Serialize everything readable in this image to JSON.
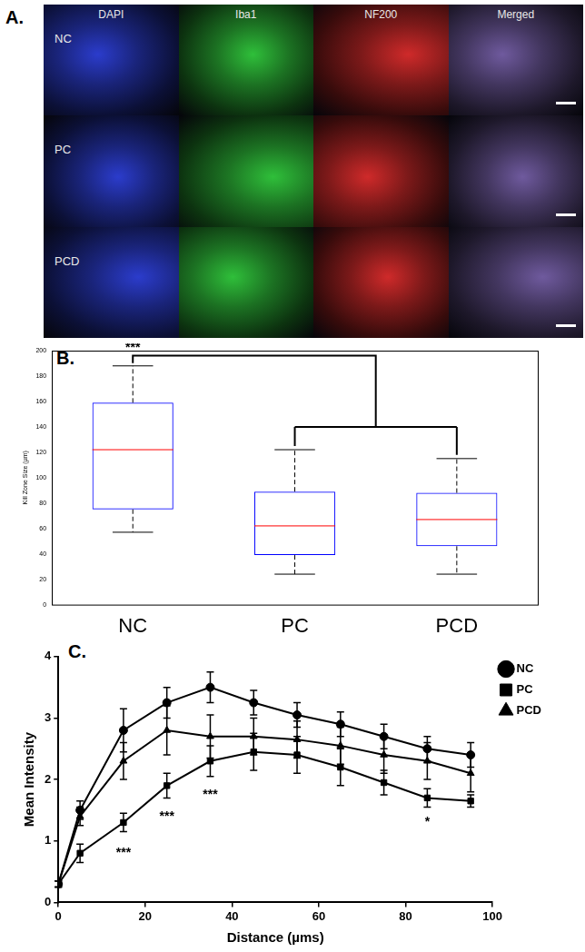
{
  "chart_data": [
    {
      "type": "image_grid",
      "title": "A.",
      "columns": [
        "DAPI",
        "Iba1",
        "NF200",
        "Merged"
      ],
      "rows": [
        "NC",
        "PC",
        "PCD"
      ],
      "colors": [
        "#2b3ccc",
        "#2fbf3a",
        "#cf2a2a",
        "#6f5a9e"
      ]
    },
    {
      "type": "box",
      "title": "B.",
      "y_label": "Kill Zone Size (µm)",
      "categories": [
        "NC",
        "PC",
        "PCD"
      ],
      "min": [
        57,
        24,
        24
      ],
      "q1": [
        75,
        39,
        46
      ],
      "median": [
        122,
        62,
        67
      ],
      "q3": [
        159,
        89,
        88
      ],
      "max": [
        188,
        122,
        115
      ],
      "color": "#0000ff",
      "ylim": [
        0,
        200
      ],
      "yticks": [
        0,
        20,
        40,
        60,
        80,
        100,
        120,
        140,
        160,
        180,
        200
      ],
      "grid": false,
      "annotations": [
        {
          "text": "***",
          "from": "NC",
          "to": [
            "PC",
            "PCD"
          ],
          "y": 196,
          "y2": 140
        }
      ]
    },
    {
      "type": "line",
      "title": "C.",
      "x_label": "Distance (µms)",
      "y_label": "Mean Intensity",
      "x": [
        0,
        5,
        15,
        25,
        35,
        45,
        55,
        65,
        75,
        85,
        95
      ],
      "series": [
        {
          "name": "NC",
          "color": "#000000",
          "marker": "circle",
          "values": [
            0.3,
            1.5,
            2.8,
            3.25,
            3.5,
            3.25,
            3.05,
            2.9,
            2.7,
            2.5,
            2.4
          ],
          "errors": [
            0.05,
            0.15,
            0.35,
            0.25,
            0.25,
            0.2,
            0.2,
            0.2,
            0.2,
            0.2,
            0.2
          ]
        },
        {
          "name": "PC",
          "color": "#000000",
          "marker": "square",
          "values": [
            0.3,
            0.8,
            1.3,
            1.9,
            2.3,
            2.45,
            2.4,
            2.2,
            1.95,
            1.7,
            1.65
          ],
          "errors": [
            0.05,
            0.15,
            0.15,
            0.2,
            0.25,
            0.3,
            0.3,
            0.3,
            0.2,
            0.15,
            0.1
          ]
        },
        {
          "name": "PCD",
          "color": "#000000",
          "marker": "triangle",
          "values": [
            0.3,
            1.4,
            2.3,
            2.8,
            2.7,
            2.7,
            2.65,
            2.55,
            2.4,
            2.3,
            2.1
          ],
          "errors": [
            0.05,
            0.15,
            0.3,
            0.4,
            0.35,
            0.3,
            0.3,
            0.3,
            0.3,
            0.3,
            0.3
          ]
        }
      ],
      "xlim": [
        0,
        100
      ],
      "xticks": [
        0,
        20,
        40,
        60,
        80,
        100
      ],
      "ylim": [
        0,
        4
      ],
      "yticks": [
        0,
        1,
        2,
        3,
        4
      ],
      "grid": false,
      "legend": "right",
      "annotations": [
        {
          "x": 15,
          "y": 0.8,
          "text": "***"
        },
        {
          "x": 25,
          "y": 1.4,
          "text": "***"
        },
        {
          "x": 35,
          "y": 1.75,
          "text": "***"
        },
        {
          "x": 85,
          "y": 1.3,
          "text": "*"
        }
      ]
    }
  ]
}
